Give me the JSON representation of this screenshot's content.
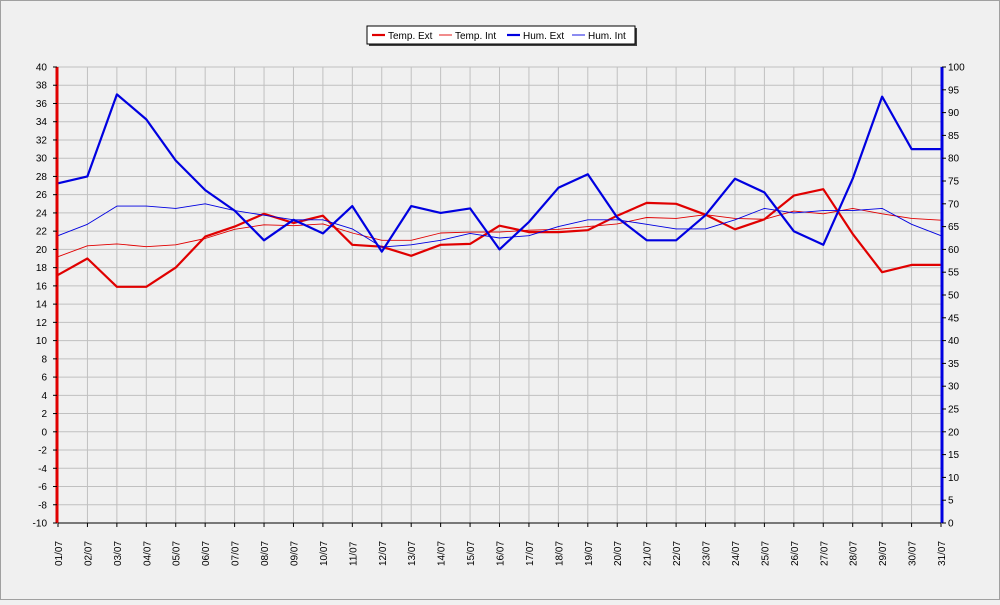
{
  "chart_data": {
    "type": "line",
    "x": [
      "01/07",
      "02/07",
      "03/07",
      "04/07",
      "05/07",
      "06/07",
      "07/07",
      "08/07",
      "09/07",
      "10/07",
      "11/07",
      "12/07",
      "13/07",
      "14/07",
      "15/07",
      "16/07",
      "17/07",
      "18/07",
      "19/07",
      "20/07",
      "21/07",
      "22/07",
      "23/07",
      "24/07",
      "25/07",
      "26/07",
      "27/07",
      "28/07",
      "29/07",
      "30/07",
      "31/07"
    ],
    "y_left": {
      "ylim": [
        -10,
        40
      ],
      "ticks": [
        -10,
        -8,
        -6,
        -4,
        -2,
        0,
        2,
        4,
        6,
        8,
        10,
        12,
        14,
        16,
        18,
        20,
        22,
        24,
        26,
        28,
        30,
        32,
        34,
        36,
        38,
        40
      ],
      "color": "#e00000"
    },
    "y_right": {
      "ylim": [
        0,
        100
      ],
      "ticks": [
        0,
        5,
        10,
        15,
        20,
        25,
        30,
        35,
        40,
        45,
        50,
        55,
        60,
        65,
        70,
        75,
        80,
        85,
        90,
        95,
        100
      ],
      "color": "#0000e0"
    },
    "grid": true,
    "legend_position": "top-center",
    "series": [
      {
        "name": "Temp. Ext",
        "axis": "left",
        "color": "#e00000",
        "width": "bold",
        "values": [
          17.2,
          19.0,
          15.9,
          15.9,
          18.0,
          21.4,
          22.5,
          23.9,
          22.9,
          23.7,
          20.5,
          20.3,
          19.3,
          20.5,
          20.6,
          22.6,
          21.9,
          21.9,
          22.1,
          23.7,
          25.1,
          25.0,
          23.8,
          22.2,
          23.3,
          25.9,
          26.6,
          21.7,
          17.5,
          18.3,
          18.3
        ]
      },
      {
        "name": "Temp. Int",
        "axis": "left",
        "color": "#e00000",
        "width": "thin",
        "values": [
          19.2,
          20.4,
          20.6,
          20.3,
          20.5,
          21.2,
          22.2,
          22.7,
          22.6,
          22.8,
          21.8,
          21.0,
          21.0,
          21.8,
          21.9,
          21.9,
          22.1,
          22.2,
          22.5,
          22.8,
          23.5,
          23.4,
          23.8,
          23.4,
          23.3,
          24.2,
          23.9,
          24.5,
          23.9,
          23.4,
          23.2
        ]
      },
      {
        "name": "Hum. Ext",
        "axis": "right",
        "color": "#0000e0",
        "width": "bold",
        "values": [
          74.5,
          76.0,
          94.0,
          88.5,
          79.5,
          73.0,
          68.5,
          62.0,
          66.5,
          63.5,
          69.5,
          59.5,
          69.5,
          68.0,
          69.0,
          60.0,
          66.0,
          73.5,
          76.5,
          67.0,
          62.0,
          62.0,
          67.5,
          75.5,
          72.5,
          64.0,
          61.0,
          75.5,
          93.5,
          82.0,
          82.0
        ]
      },
      {
        "name": "Hum. Int",
        "axis": "right",
        "color": "#0000e0",
        "width": "thin",
        "values": [
          63.0,
          65.5,
          69.5,
          69.5,
          69.0,
          70.0,
          68.5,
          67.5,
          66.5,
          66.5,
          64.5,
          60.5,
          61.0,
          62.0,
          63.5,
          62.5,
          63.0,
          65.0,
          66.5,
          66.5,
          65.5,
          64.5,
          64.5,
          66.5,
          69.0,
          68.0,
          68.5,
          68.5,
          69.0,
          65.5,
          63.0
        ]
      }
    ]
  }
}
